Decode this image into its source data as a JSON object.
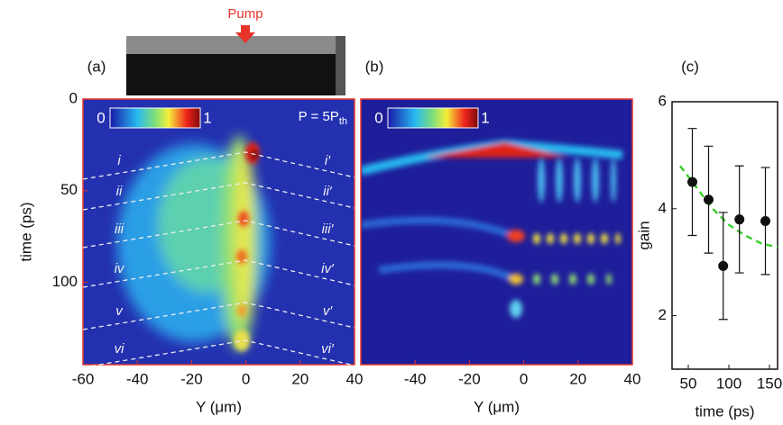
{
  "chart_data": [
    {
      "type": "heatmap",
      "panel_label": "(a)",
      "top_label": "Pump",
      "annotation": {
        "text": "P = 5P",
        "sub": "th"
      },
      "xlabel": "Y (μm)",
      "ylabel": "time (ps)",
      "xlim": [
        -60,
        40
      ],
      "xticks": [
        -60,
        -40,
        -20,
        0,
        20,
        40
      ],
      "ylim": [
        145,
        0
      ],
      "yticks": [
        0,
        50,
        100
      ],
      "colorbar_ticks": [
        0,
        1
      ],
      "line_labels_left": [
        "i",
        "ii",
        "iii",
        "iv",
        "v",
        "vi"
      ],
      "line_labels_right": [
        "i′",
        "ii′",
        "iii′",
        "iv′",
        "v′",
        "vi′"
      ],
      "frame_color": "#e8332a"
    },
    {
      "type": "heatmap",
      "panel_label": "(b)",
      "xlabel": "Y (μm)",
      "xlim": [
        -60,
        40
      ],
      "xticks": [
        -40,
        -20,
        0,
        20,
        40
      ],
      "ylim": [
        145,
        0
      ],
      "colorbar_ticks": [
        0,
        1
      ],
      "frame_color": "#e8332a"
    },
    {
      "type": "scatter",
      "panel_label": "(c)",
      "xlabel": "time (ps)",
      "ylabel": "gain",
      "xlim": [
        30,
        160
      ],
      "xticks": [
        50,
        100,
        150
      ],
      "ylim": [
        1,
        6
      ],
      "yticks": [
        2,
        4,
        6
      ],
      "x": [
        55,
        75,
        93,
        113,
        145
      ],
      "values": [
        4.5,
        4.17,
        2.93,
        3.8,
        3.77
      ],
      "errors": [
        1.0,
        1.0,
        1.0,
        1.0,
        1.0
      ],
      "color": "#111111",
      "fit": {
        "x": [
          40,
          60,
          80,
          100,
          120,
          140,
          160
        ],
        "values": [
          4.8,
          4.4,
          4.0,
          3.7,
          3.5,
          3.35,
          3.28
        ],
        "color": "#3fcf2f"
      }
    }
  ]
}
